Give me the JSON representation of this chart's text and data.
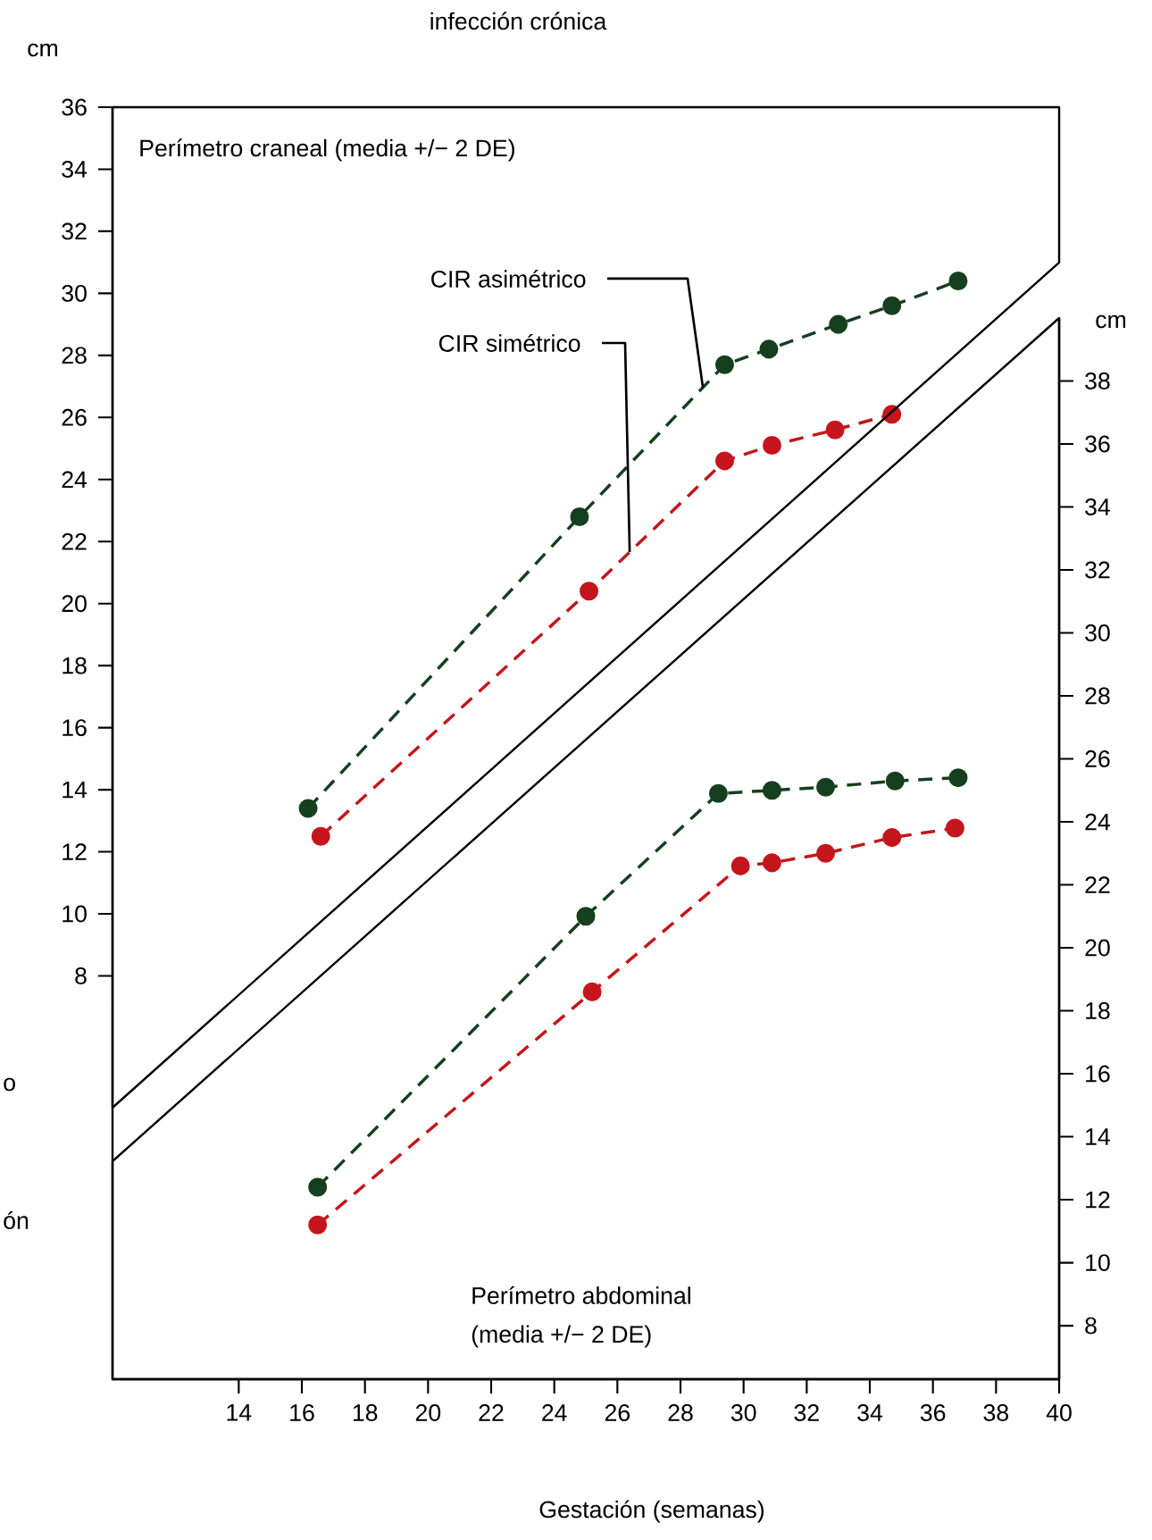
{
  "chart_data": {
    "type": "line",
    "title": "infección crónica",
    "xlabel": "Gestación (semanas)",
    "ylabel": "cm",
    "y2label": "cm",
    "xlim": [
      10,
      40
    ],
    "xticks": [
      14,
      16,
      18,
      20,
      22,
      24,
      26,
      28,
      30,
      32,
      34,
      36,
      38,
      40
    ],
    "ylim": [
      -5,
      36
    ],
    "yticks": [
      8,
      10,
      12,
      14,
      16,
      18,
      20,
      22,
      24,
      26,
      28,
      30,
      32,
      34,
      36
    ],
    "y2lim": [
      6.3,
      40
    ],
    "y2ticks": [
      8,
      10,
      12,
      14,
      16,
      18,
      20,
      22,
      24,
      26,
      28,
      30,
      32,
      34,
      36,
      38
    ],
    "marker": "circle",
    "line_style": "dashed",
    "series": [
      {
        "name": "CIR asimétrico",
        "color": "#153f1e",
        "x": [
          16.2,
          24.8,
          29.4,
          30.8,
          33.0,
          34.7,
          36.8
        ],
        "values": [
          13.4,
          22.8,
          27.7,
          28.2,
          29.0,
          29.6,
          30.4
        ]
      },
      {
        "name": "CIR simétrico",
        "color": "#c4161c",
        "x": [
          16.6,
          25.1,
          29.4,
          30.9,
          32.9,
          34.7
        ],
        "values": [
          12.5,
          20.4,
          24.6,
          25.1,
          25.6,
          26.1
        ]
      },
      {
        "color": "#153f1e",
        "axis": "y2",
        "x": [
          16.5,
          25.0,
          29.2,
          30.9,
          32.6,
          34.8,
          36.8
        ],
        "values": [
          12.4,
          21.0,
          24.9,
          25.0,
          25.1,
          25.3,
          25.4
        ]
      },
      {
        "color": "#c4161c",
        "axis": "y2",
        "x": [
          16.5,
          25.2,
          29.9,
          30.9,
          32.6,
          34.7,
          36.7
        ],
        "values": [
          11.2,
          18.6,
          22.6,
          22.7,
          23.0,
          23.5,
          23.8
        ]
      }
    ],
    "annotations": [
      "Perímetro craneal (media +/− 2 DE)",
      "Perímetro abdominal",
      "(media +/− 2 DE)",
      "o",
      "ón"
    ]
  }
}
